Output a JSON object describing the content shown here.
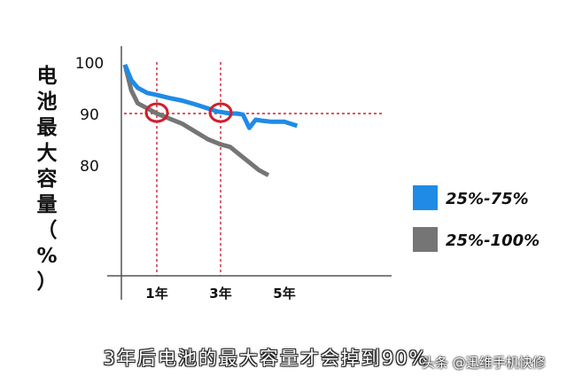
{
  "chart_data": {
    "type": "line",
    "ylabel": "电池最大容量（%）",
    "yticks": [
      "100",
      "90",
      "80"
    ],
    "xticks": [
      "1年",
      "3年",
      "5年"
    ],
    "ylim": [
      65,
      100
    ],
    "xlim": [
      0,
      5.6
    ],
    "x_labels_at": [
      1,
      3,
      5
    ],
    "y_ticks_at": [
      100,
      90,
      80
    ],
    "grid": false,
    "legend_position": "right",
    "series": [
      {
        "name": "25%-75%",
        "color": "#1f8be6",
        "x": [
          0,
          0.2,
          0.4,
          0.7,
          1.0,
          1.4,
          1.8,
          2.2,
          2.6,
          2.9,
          3.1,
          3.3,
          3.5,
          3.7,
          3.9,
          4.1,
          4.3,
          4.6,
          5.0,
          5.4
        ],
        "y": [
          99.5,
          96.5,
          95.0,
          94.0,
          93.6,
          93.0,
          92.5,
          91.8,
          91.0,
          90.4,
          90.2,
          90.0,
          90.0,
          89.8,
          87.2,
          88.8,
          88.6,
          88.4,
          88.4,
          87.6
        ]
      },
      {
        "name": "25%-100%",
        "color": "#757575",
        "x": [
          0,
          0.2,
          0.4,
          0.7,
          1.0,
          1.4,
          1.8,
          2.2,
          2.6,
          3.0,
          3.3,
          3.6,
          3.9,
          4.2,
          4.5
        ],
        "y": [
          99.5,
          94.5,
          92.0,
          91.0,
          90.0,
          89.0,
          88.0,
          86.5,
          85.0,
          84.0,
          83.5,
          82.0,
          80.5,
          79.0,
          78.0
        ]
      }
    ],
    "markers": [
      {
        "type": "circle",
        "x": 1,
        "y": 90,
        "color": "#cf1f2e"
      },
      {
        "type": "circle",
        "x": 3,
        "y": 90,
        "color": "#cf1f2e"
      }
    ],
    "reference_lines": [
      {
        "orientation": "horizontal",
        "y": 90,
        "color": "#cf1f2e",
        "style": "dashed"
      },
      {
        "orientation": "vertical",
        "x": 1,
        "color": "#cf1f2e",
        "style": "dashed"
      },
      {
        "orientation": "vertical",
        "x": 3,
        "color": "#cf1f2e",
        "style": "dashed"
      }
    ]
  },
  "caption": "3年后电池的最大容量才会掉到90%",
  "watermark": "头条 @迅维手机快修",
  "ylabel_chars": [
    "电",
    "池",
    "最",
    "大",
    "容",
    "量",
    "（",
    "%",
    "）"
  ]
}
